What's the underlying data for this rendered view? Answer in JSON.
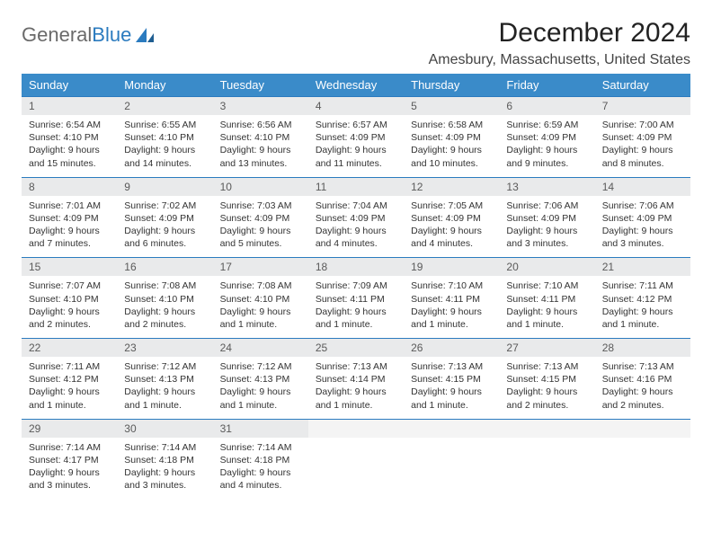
{
  "logo": {
    "text1": "General",
    "text2": "Blue"
  },
  "title": "December 2024",
  "location": "Amesbury, Massachusetts, United States",
  "colors": {
    "header_bg": "#3a8bc9",
    "header_text": "#ffffff",
    "daynum_bg": "#e9eaeb",
    "border_top": "#2b7bbf",
    "logo_gray": "#6a6a6a",
    "logo_blue": "#2b7bbf"
  },
  "daysOfWeek": [
    "Sunday",
    "Monday",
    "Tuesday",
    "Wednesday",
    "Thursday",
    "Friday",
    "Saturday"
  ],
  "weeks": [
    [
      {
        "n": "1",
        "sunrise": "6:54 AM",
        "sunset": "4:10 PM",
        "daylight": "9 hours and 15 minutes."
      },
      {
        "n": "2",
        "sunrise": "6:55 AM",
        "sunset": "4:10 PM",
        "daylight": "9 hours and 14 minutes."
      },
      {
        "n": "3",
        "sunrise": "6:56 AM",
        "sunset": "4:10 PM",
        "daylight": "9 hours and 13 minutes."
      },
      {
        "n": "4",
        "sunrise": "6:57 AM",
        "sunset": "4:09 PM",
        "daylight": "9 hours and 11 minutes."
      },
      {
        "n": "5",
        "sunrise": "6:58 AM",
        "sunset": "4:09 PM",
        "daylight": "9 hours and 10 minutes."
      },
      {
        "n": "6",
        "sunrise": "6:59 AM",
        "sunset": "4:09 PM",
        "daylight": "9 hours and 9 minutes."
      },
      {
        "n": "7",
        "sunrise": "7:00 AM",
        "sunset": "4:09 PM",
        "daylight": "9 hours and 8 minutes."
      }
    ],
    [
      {
        "n": "8",
        "sunrise": "7:01 AM",
        "sunset": "4:09 PM",
        "daylight": "9 hours and 7 minutes."
      },
      {
        "n": "9",
        "sunrise": "7:02 AM",
        "sunset": "4:09 PM",
        "daylight": "9 hours and 6 minutes."
      },
      {
        "n": "10",
        "sunrise": "7:03 AM",
        "sunset": "4:09 PM",
        "daylight": "9 hours and 5 minutes."
      },
      {
        "n": "11",
        "sunrise": "7:04 AM",
        "sunset": "4:09 PM",
        "daylight": "9 hours and 4 minutes."
      },
      {
        "n": "12",
        "sunrise": "7:05 AM",
        "sunset": "4:09 PM",
        "daylight": "9 hours and 4 minutes."
      },
      {
        "n": "13",
        "sunrise": "7:06 AM",
        "sunset": "4:09 PM",
        "daylight": "9 hours and 3 minutes."
      },
      {
        "n": "14",
        "sunrise": "7:06 AM",
        "sunset": "4:09 PM",
        "daylight": "9 hours and 3 minutes."
      }
    ],
    [
      {
        "n": "15",
        "sunrise": "7:07 AM",
        "sunset": "4:10 PM",
        "daylight": "9 hours and 2 minutes."
      },
      {
        "n": "16",
        "sunrise": "7:08 AM",
        "sunset": "4:10 PM",
        "daylight": "9 hours and 2 minutes."
      },
      {
        "n": "17",
        "sunrise": "7:08 AM",
        "sunset": "4:10 PM",
        "daylight": "9 hours and 1 minute."
      },
      {
        "n": "18",
        "sunrise": "7:09 AM",
        "sunset": "4:11 PM",
        "daylight": "9 hours and 1 minute."
      },
      {
        "n": "19",
        "sunrise": "7:10 AM",
        "sunset": "4:11 PM",
        "daylight": "9 hours and 1 minute."
      },
      {
        "n": "20",
        "sunrise": "7:10 AM",
        "sunset": "4:11 PM",
        "daylight": "9 hours and 1 minute."
      },
      {
        "n": "21",
        "sunrise": "7:11 AM",
        "sunset": "4:12 PM",
        "daylight": "9 hours and 1 minute."
      }
    ],
    [
      {
        "n": "22",
        "sunrise": "7:11 AM",
        "sunset": "4:12 PM",
        "daylight": "9 hours and 1 minute."
      },
      {
        "n": "23",
        "sunrise": "7:12 AM",
        "sunset": "4:13 PM",
        "daylight": "9 hours and 1 minute."
      },
      {
        "n": "24",
        "sunrise": "7:12 AM",
        "sunset": "4:13 PM",
        "daylight": "9 hours and 1 minute."
      },
      {
        "n": "25",
        "sunrise": "7:13 AM",
        "sunset": "4:14 PM",
        "daylight": "9 hours and 1 minute."
      },
      {
        "n": "26",
        "sunrise": "7:13 AM",
        "sunset": "4:15 PM",
        "daylight": "9 hours and 1 minute."
      },
      {
        "n": "27",
        "sunrise": "7:13 AM",
        "sunset": "4:15 PM",
        "daylight": "9 hours and 2 minutes."
      },
      {
        "n": "28",
        "sunrise": "7:13 AM",
        "sunset": "4:16 PM",
        "daylight": "9 hours and 2 minutes."
      }
    ],
    [
      {
        "n": "29",
        "sunrise": "7:14 AM",
        "sunset": "4:17 PM",
        "daylight": "9 hours and 3 minutes."
      },
      {
        "n": "30",
        "sunrise": "7:14 AM",
        "sunset": "4:18 PM",
        "daylight": "9 hours and 3 minutes."
      },
      {
        "n": "31",
        "sunrise": "7:14 AM",
        "sunset": "4:18 PM",
        "daylight": "9 hours and 4 minutes."
      },
      null,
      null,
      null,
      null
    ]
  ],
  "labels": {
    "sunrise": "Sunrise:",
    "sunset": "Sunset:",
    "daylight": "Daylight:"
  }
}
